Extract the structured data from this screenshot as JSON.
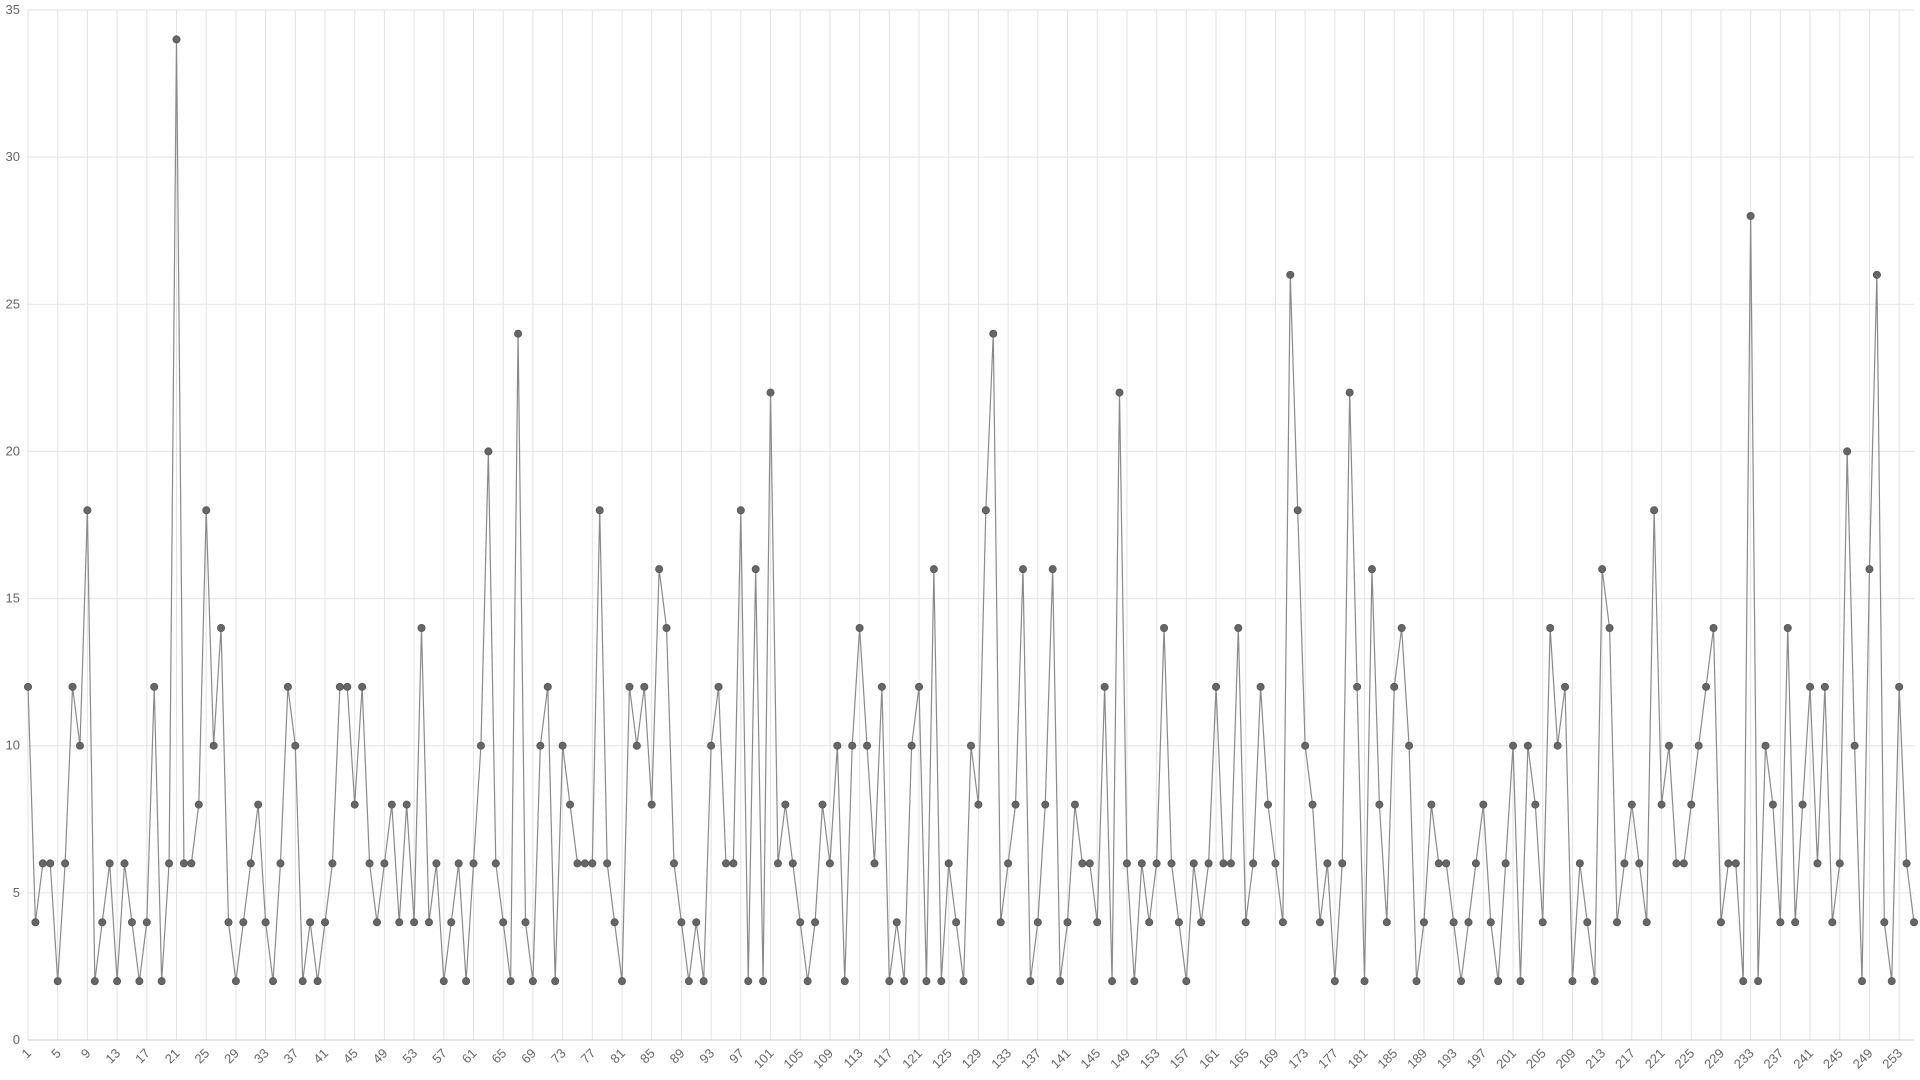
{
  "chart_data": {
    "type": "line",
    "categories": [
      1,
      null,
      null,
      null,
      5,
      null,
      null,
      null,
      9,
      null,
      null,
      null,
      13,
      null,
      null,
      null,
      17,
      null,
      null,
      null,
      21,
      null,
      null,
      null,
      25,
      null,
      null,
      null,
      29,
      null,
      null,
      null,
      33,
      null,
      null,
      null,
      37,
      null,
      null,
      null,
      41,
      null,
      null,
      null,
      45,
      null,
      null,
      null,
      49,
      null,
      null,
      null,
      53,
      null,
      null,
      null,
      57,
      null,
      null,
      null,
      61,
      null,
      null,
      null,
      65,
      null,
      null,
      null,
      69,
      null,
      null,
      null,
      73,
      null,
      null,
      null,
      77,
      null,
      null,
      null,
      81,
      null,
      null,
      null,
      85,
      null,
      null,
      null,
      89,
      null,
      null,
      null,
      93,
      null,
      null,
      null,
      97,
      null,
      null,
      null,
      101,
      null,
      null,
      null,
      105,
      null,
      null,
      null,
      109,
      null,
      null,
      null,
      113,
      null,
      null,
      null,
      117,
      null,
      null,
      null,
      121,
      null,
      null,
      null,
      125,
      null,
      null,
      null,
      129,
      null,
      null,
      null,
      133,
      null,
      null,
      null,
      137,
      null,
      null,
      null,
      141,
      null,
      null,
      null,
      145,
      null,
      null,
      null,
      149,
      null,
      null,
      null,
      153,
      null,
      null,
      null,
      157,
      null,
      null,
      null,
      161,
      null,
      null,
      null,
      165,
      null,
      null,
      null,
      169,
      null,
      null,
      null,
      173,
      null,
      null,
      null,
      177,
      null,
      null,
      null,
      181,
      null,
      null,
      null,
      185,
      null,
      null,
      null,
      189,
      null,
      null,
      null,
      193,
      null,
      null,
      null,
      197,
      null,
      null,
      null,
      201,
      null,
      null,
      null,
      205,
      null,
      null,
      null,
      209,
      null,
      null,
      null,
      213,
      null,
      null,
      null,
      217,
      null,
      null,
      null,
      221,
      null,
      null,
      null,
      225,
      null,
      null,
      null,
      229,
      null,
      null,
      null,
      233,
      null,
      null,
      null,
      237,
      null,
      null,
      null,
      241,
      null,
      null,
      null,
      245,
      null,
      null,
      null,
      249,
      null,
      null,
      null,
      253,
      null,
      null
    ],
    "values": [
      12,
      4,
      6,
      6,
      2,
      6,
      12,
      10,
      18,
      2,
      4,
      6,
      2,
      6,
      4,
      2,
      4,
      12,
      2,
      6,
      34,
      6,
      6,
      8,
      18,
      10,
      14,
      4,
      2,
      4,
      6,
      8,
      4,
      2,
      6,
      12,
      10,
      2,
      4,
      2,
      4,
      6,
      12,
      12,
      8,
      12,
      6,
      4,
      6,
      8,
      4,
      8,
      4,
      14,
      4,
      6,
      2,
      4,
      6,
      2,
      6,
      10,
      20,
      6,
      4,
      2,
      24,
      4,
      2,
      10,
      12,
      2,
      10,
      8,
      6,
      6,
      6,
      18,
      6,
      4,
      2,
      12,
      10,
      12,
      8,
      16,
      14,
      6,
      4,
      2,
      4,
      2,
      10,
      12,
      6,
      6,
      18,
      2,
      16,
      2,
      22,
      6,
      8,
      6,
      4,
      2,
      4,
      8,
      6,
      10,
      2,
      10,
      14,
      10,
      6,
      12,
      2,
      4,
      2,
      10,
      12,
      2,
      16,
      2,
      6,
      4,
      2,
      10,
      8,
      18,
      24,
      4,
      6,
      8,
      16,
      2,
      4,
      8,
      16,
      2,
      4,
      8,
      6,
      6,
      4,
      12,
      2,
      22,
      6,
      2,
      6,
      4,
      6,
      14,
      6,
      4,
      2,
      6,
      4,
      6,
      12,
      6,
      6,
      14,
      4,
      6,
      12,
      8,
      6,
      4,
      26,
      18,
      10,
      8,
      4,
      6,
      2,
      6,
      22,
      12,
      2,
      16,
      8,
      4,
      12,
      14,
      10,
      2,
      4,
      8,
      6,
      6,
      4,
      2,
      4,
      6,
      8,
      4,
      2,
      6,
      10,
      2,
      10,
      8,
      4,
      14,
      10,
      12,
      2,
      6,
      4,
      2,
      16,
      14,
      4,
      6,
      8,
      6,
      4,
      18,
      8,
      10,
      6,
      6,
      8,
      10,
      12,
      14,
      4,
      6,
      6,
      2,
      28,
      2,
      10,
      8,
      4,
      14,
      4,
      8,
      12,
      6,
      12,
      4,
      6,
      20,
      10,
      2,
      16,
      26,
      4,
      2,
      12,
      6,
      4
    ],
    "color": "#666666",
    "ylim": [
      0,
      35
    ],
    "yticks": [
      0,
      5,
      10,
      15,
      20,
      25,
      30,
      35
    ],
    "grid": true
  }
}
